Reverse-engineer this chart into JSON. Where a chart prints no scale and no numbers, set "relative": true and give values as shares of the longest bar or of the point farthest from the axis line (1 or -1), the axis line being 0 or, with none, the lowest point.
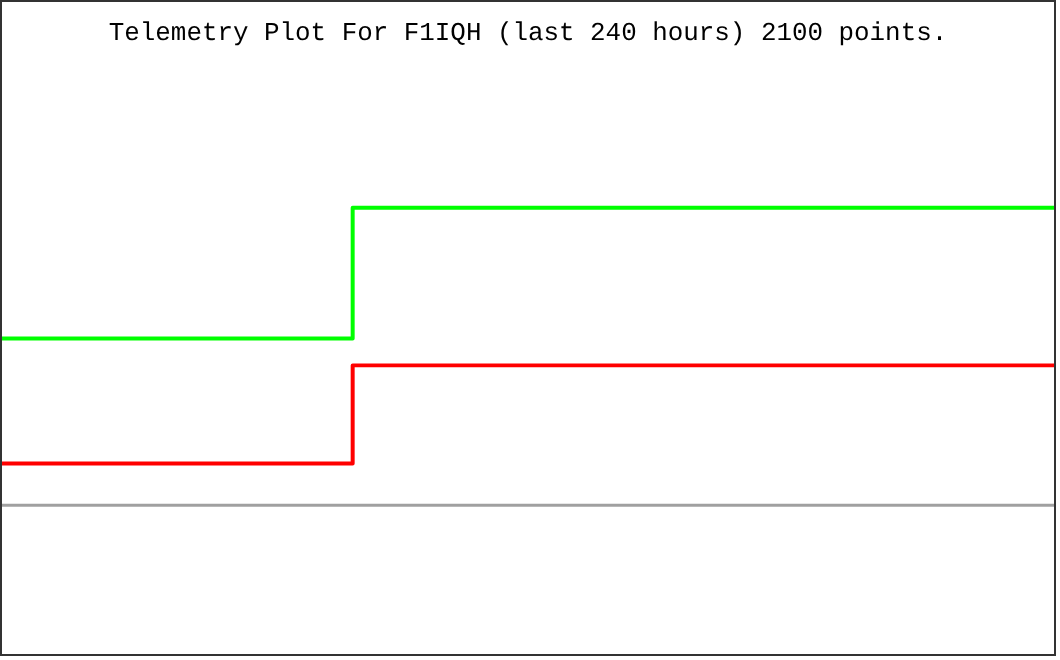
{
  "chart_data": {
    "type": "step",
    "title": "Telemetry Plot For F1IQH (last 240 hours) 2100 points.",
    "relative": true,
    "categories": [
      null,
      null,
      null,
      null
    ],
    "series": [
      {
        "color": "#00ff00",
        "values": [
          0.56,
          1,
          1,
          1
        ]
      },
      {
        "color": "#ff0000",
        "values": [
          0.14,
          0.47,
          0.47,
          0.47
        ]
      }
    ]
  }
}
